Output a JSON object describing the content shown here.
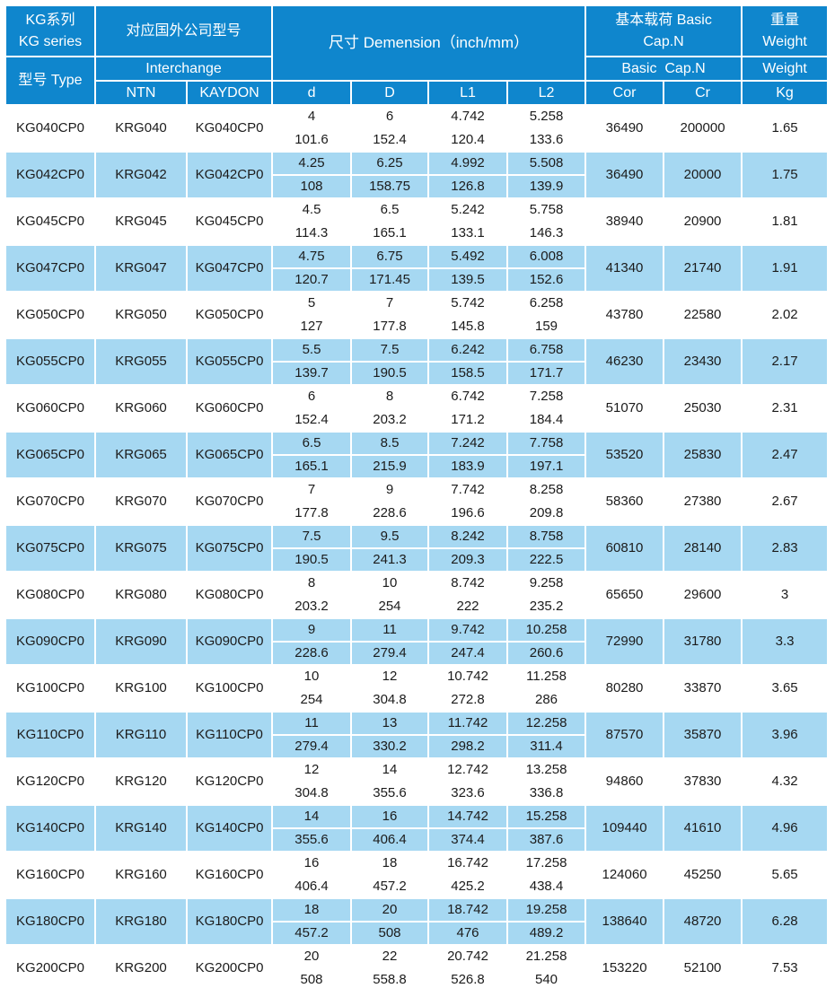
{
  "header": {
    "kg_series": "KG系列\nKG series",
    "type_label": "型号 Type",
    "interchange_cn": "对应国外公司型号",
    "interchange_en": "Interchange",
    "ntn": "NTN",
    "kaydon": "KAYDON",
    "dimension": "尺寸 Demension（inch/mm）",
    "basic_cap_cn": "基本载荷 Basic\nCap.N",
    "basic_cap_en": "Basic  Cap.N",
    "weight_cn": "重量\nWeight",
    "weight_en": "Weight",
    "col_d": "d",
    "col_D": "D",
    "col_l1": "L1",
    "col_l2": "L2",
    "col_cor": "Cor",
    "col_cr": "Cr",
    "col_kg": "Kg"
  },
  "colors": {
    "header_blue": "#0f86cd",
    "row_highlight_blue": "#a6d8f2",
    "text_dark": "#1b1b1b",
    "text_light": "#ffffff"
  },
  "rows": [
    {
      "type": "KG040CP0",
      "ntn": "KRG040",
      "kaydon": "KG040CP0",
      "d": [
        "4",
        "101.6"
      ],
      "D": [
        "6",
        "152.4"
      ],
      "l1": [
        "4.742",
        "120.4"
      ],
      "l2": [
        "5.258",
        "133.6"
      ],
      "cor": "36490",
      "cr": "200000",
      "kg": "1.65",
      "hl": false
    },
    {
      "type": "KG042CP0",
      "ntn": "KRG042",
      "kaydon": "KG042CP0",
      "d": [
        "4.25",
        "108"
      ],
      "D": [
        "6.25",
        "158.75"
      ],
      "l1": [
        "4.992",
        "126.8"
      ],
      "l2": [
        "5.508",
        "139.9"
      ],
      "cor": "36490",
      "cr": "20000",
      "kg": "1.75",
      "hl": true
    },
    {
      "type": "KG045CP0",
      "ntn": "KRG045",
      "kaydon": "KG045CP0",
      "d": [
        "4.5",
        "114.3"
      ],
      "D": [
        "6.5",
        "165.1"
      ],
      "l1": [
        "5.242",
        "133.1"
      ],
      "l2": [
        "5.758",
        "146.3"
      ],
      "cor": "38940",
      "cr": "20900",
      "kg": "1.81",
      "hl": false
    },
    {
      "type": "KG047CP0",
      "ntn": "KRG047",
      "kaydon": "KG047CP0",
      "d": [
        "4.75",
        "120.7"
      ],
      "D": [
        "6.75",
        "171.45"
      ],
      "l1": [
        "5.492",
        "139.5"
      ],
      "l2": [
        "6.008",
        "152.6"
      ],
      "cor": "41340",
      "cr": "21740",
      "kg": "1.91",
      "hl": true
    },
    {
      "type": "KG050CP0",
      "ntn": "KRG050",
      "kaydon": "KG050CP0",
      "d": [
        "5",
        "127"
      ],
      "D": [
        "7",
        "177.8"
      ],
      "l1": [
        "5.742",
        "145.8"
      ],
      "l2": [
        "6.258",
        "159"
      ],
      "cor": "43780",
      "cr": "22580",
      "kg": "2.02",
      "hl": false
    },
    {
      "type": "KG055CP0",
      "ntn": "KRG055",
      "kaydon": "KG055CP0",
      "d": [
        "5.5",
        "139.7"
      ],
      "D": [
        "7.5",
        "190.5"
      ],
      "l1": [
        "6.242",
        "158.5"
      ],
      "l2": [
        "6.758",
        "171.7"
      ],
      "cor": "46230",
      "cr": "23430",
      "kg": "2.17",
      "hl": true
    },
    {
      "type": "KG060CP0",
      "ntn": "KRG060",
      "kaydon": "KG060CP0",
      "d": [
        "6",
        "152.4"
      ],
      "D": [
        "8",
        "203.2"
      ],
      "l1": [
        "6.742",
        "171.2"
      ],
      "l2": [
        "7.258",
        "184.4"
      ],
      "cor": "51070",
      "cr": "25030",
      "kg": "2.31",
      "hl": false
    },
    {
      "type": "KG065CP0",
      "ntn": "KRG065",
      "kaydon": "KG065CP0",
      "d": [
        "6.5",
        "165.1"
      ],
      "D": [
        "8.5",
        "215.9"
      ],
      "l1": [
        "7.242",
        "183.9"
      ],
      "l2": [
        "7.758",
        "197.1"
      ],
      "cor": "53520",
      "cr": "25830",
      "kg": "2.47",
      "hl": true
    },
    {
      "type": "KG070CP0",
      "ntn": "KRG070",
      "kaydon": "KG070CP0",
      "d": [
        "7",
        "177.8"
      ],
      "D": [
        "9",
        "228.6"
      ],
      "l1": [
        "7.742",
        "196.6"
      ],
      "l2": [
        "8.258",
        "209.8"
      ],
      "cor": "58360",
      "cr": "27380",
      "kg": "2.67",
      "hl": false
    },
    {
      "type": "KG075CP0",
      "ntn": "KRG075",
      "kaydon": "KG075CP0",
      "d": [
        "7.5",
        "190.5"
      ],
      "D": [
        "9.5",
        "241.3"
      ],
      "l1": [
        "8.242",
        "209.3"
      ],
      "l2": [
        "8.758",
        "222.5"
      ],
      "cor": "60810",
      "cr": "28140",
      "kg": "2.83",
      "hl": true
    },
    {
      "type": "KG080CP0",
      "ntn": "KRG080",
      "kaydon": "KG080CP0",
      "d": [
        "8",
        "203.2"
      ],
      "D": [
        "10",
        "254"
      ],
      "l1": [
        "8.742",
        "222"
      ],
      "l2": [
        "9.258",
        "235.2"
      ],
      "cor": "65650",
      "cr": "29600",
      "kg": "3",
      "hl": false
    },
    {
      "type": "KG090CP0",
      "ntn": "KRG090",
      "kaydon": "KG090CP0",
      "d": [
        "9",
        "228.6"
      ],
      "D": [
        "11",
        "279.4"
      ],
      "l1": [
        "9.742",
        "247.4"
      ],
      "l2": [
        "10.258",
        "260.6"
      ],
      "cor": "72990",
      "cr": "31780",
      "kg": "3.3",
      "hl": true
    },
    {
      "type": "KG100CP0",
      "ntn": "KRG100",
      "kaydon": "KG100CP0",
      "d": [
        "10",
        "254"
      ],
      "D": [
        "12",
        "304.8"
      ],
      "l1": [
        "10.742",
        "272.8"
      ],
      "l2": [
        "11.258",
        "286"
      ],
      "cor": "80280",
      "cr": "33870",
      "kg": "3.65",
      "hl": false
    },
    {
      "type": "KG110CP0",
      "ntn": "KRG110",
      "kaydon": "KG110CP0",
      "d": [
        "11",
        "279.4"
      ],
      "D": [
        "13",
        "330.2"
      ],
      "l1": [
        "11.742",
        "298.2"
      ],
      "l2": [
        "12.258",
        "311.4"
      ],
      "cor": "87570",
      "cr": "35870",
      "kg": "3.96",
      "hl": true
    },
    {
      "type": "KG120CP0",
      "ntn": "KRG120",
      "kaydon": "KG120CP0",
      "d": [
        "12",
        "304.8"
      ],
      "D": [
        "14",
        "355.6"
      ],
      "l1": [
        "12.742",
        "323.6"
      ],
      "l2": [
        "13.258",
        "336.8"
      ],
      "cor": "94860",
      "cr": "37830",
      "kg": "4.32",
      "hl": false
    },
    {
      "type": "KG140CP0",
      "ntn": "KRG140",
      "kaydon": "KG140CP0",
      "d": [
        "14",
        "355.6"
      ],
      "D": [
        "16",
        "406.4"
      ],
      "l1": [
        "14.742",
        "374.4"
      ],
      "l2": [
        "15.258",
        "387.6"
      ],
      "cor": "109440",
      "cr": "41610",
      "kg": "4.96",
      "hl": true
    },
    {
      "type": "KG160CP0",
      "ntn": "KRG160",
      "kaydon": "KG160CP0",
      "d": [
        "16",
        "406.4"
      ],
      "D": [
        "18",
        "457.2"
      ],
      "l1": [
        "16.742",
        "425.2"
      ],
      "l2": [
        "17.258",
        "438.4"
      ],
      "cor": "124060",
      "cr": "45250",
      "kg": "5.65",
      "hl": false
    },
    {
      "type": "KG180CP0",
      "ntn": "KRG180",
      "kaydon": "KG180CP0",
      "d": [
        "18",
        "457.2"
      ],
      "D": [
        "20",
        "508"
      ],
      "l1": [
        "18.742",
        "476"
      ],
      "l2": [
        "19.258",
        "489.2"
      ],
      "cor": "138640",
      "cr": "48720",
      "kg": "6.28",
      "hl": true
    },
    {
      "type": "KG200CP0",
      "ntn": "KRG200",
      "kaydon": "KG200CP0",
      "d": [
        "20",
        "508"
      ],
      "D": [
        "22",
        "558.8"
      ],
      "l1": [
        "20.742",
        "526.8"
      ],
      "l2": [
        "21.258",
        "540"
      ],
      "cor": "153220",
      "cr": "52100",
      "kg": "7.53",
      "hl": false
    }
  ]
}
